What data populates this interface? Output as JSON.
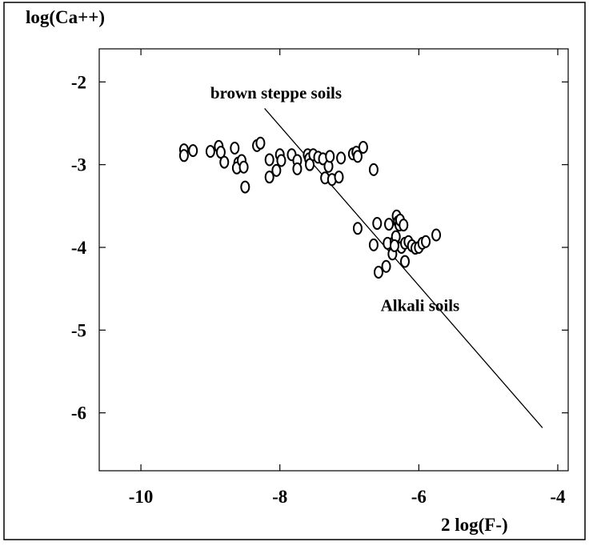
{
  "chart_data": {
    "type": "scatter",
    "ylabel": "log(Ca++)",
    "xlabel": "2 log(F-)",
    "xlim": [
      -10.6,
      -3.85
    ],
    "ylim": [
      -6.7,
      -1.6
    ],
    "xticks": [
      -10,
      -8,
      -6,
      -4
    ],
    "yticks": [
      -2,
      -3,
      -4,
      -5,
      -6
    ],
    "x_tick_labels": [
      "-10",
      "-8",
      "-6",
      "-4"
    ],
    "y_tick_labels": [
      "-2",
      "-3",
      "-4",
      "-5",
      "-6"
    ],
    "grid": false,
    "annotations": [
      {
        "text": "brown steppe soils",
        "x": -9.0,
        "y": -2.2
      },
      {
        "text": "Alkali soils",
        "x": -6.55,
        "y": -4.77
      }
    ],
    "line": {
      "x": [
        -8.22,
        -4.22
      ],
      "y": [
        -2.32,
        -6.18
      ]
    },
    "points": [
      {
        "x": -9.38,
        "y": -2.82
      },
      {
        "x": -9.38,
        "y": -2.89
      },
      {
        "x": -9.25,
        "y": -2.83
      },
      {
        "x": -9.0,
        "y": -2.84
      },
      {
        "x": -8.88,
        "y": -2.78
      },
      {
        "x": -8.85,
        "y": -2.85
      },
      {
        "x": -8.8,
        "y": -2.97
      },
      {
        "x": -8.65,
        "y": -2.8
      },
      {
        "x": -8.6,
        "y": -2.98
      },
      {
        "x": -8.62,
        "y": -3.04
      },
      {
        "x": -8.55,
        "y": -2.95
      },
      {
        "x": -8.52,
        "y": -3.03
      },
      {
        "x": -8.5,
        "y": -3.27
      },
      {
        "x": -8.33,
        "y": -2.77
      },
      {
        "x": -8.28,
        "y": -2.74
      },
      {
        "x": -8.15,
        "y": -2.94
      },
      {
        "x": -8.15,
        "y": -3.15
      },
      {
        "x": -8.05,
        "y": -3.07
      },
      {
        "x": -8.0,
        "y": -2.88
      },
      {
        "x": -7.98,
        "y": -2.95
      },
      {
        "x": -7.83,
        "y": -2.88
      },
      {
        "x": -7.75,
        "y": -2.95
      },
      {
        "x": -7.75,
        "y": -3.05
      },
      {
        "x": -7.6,
        "y": -2.88
      },
      {
        "x": -7.58,
        "y": -2.93
      },
      {
        "x": -7.57,
        "y": -3.0
      },
      {
        "x": -7.52,
        "y": -2.88
      },
      {
        "x": -7.45,
        "y": -2.91
      },
      {
        "x": -7.38,
        "y": -2.93
      },
      {
        "x": -7.35,
        "y": -3.16
      },
      {
        "x": -7.3,
        "y": -3.02
      },
      {
        "x": -7.28,
        "y": -2.9
      },
      {
        "x": -7.25,
        "y": -3.18
      },
      {
        "x": -7.15,
        "y": -3.15
      },
      {
        "x": -7.12,
        "y": -2.92
      },
      {
        "x": -6.95,
        "y": -2.87
      },
      {
        "x": -6.9,
        "y": -2.85
      },
      {
        "x": -6.88,
        "y": -2.9
      },
      {
        "x": -6.8,
        "y": -2.79
      },
      {
        "x": -6.65,
        "y": -3.06
      },
      {
        "x": -6.88,
        "y": -3.77
      },
      {
        "x": -6.65,
        "y": -3.97
      },
      {
        "x": -6.6,
        "y": -3.71
      },
      {
        "x": -6.58,
        "y": -4.3
      },
      {
        "x": -6.47,
        "y": -4.23
      },
      {
        "x": -6.45,
        "y": -3.95
      },
      {
        "x": -6.43,
        "y": -3.72
      },
      {
        "x": -6.38,
        "y": -4.08
      },
      {
        "x": -6.35,
        "y": -3.93
      },
      {
        "x": -6.33,
        "y": -3.87
      },
      {
        "x": -6.32,
        "y": -3.62
      },
      {
        "x": -6.3,
        "y": -3.69
      },
      {
        "x": -6.28,
        "y": -3.73
      },
      {
        "x": -6.27,
        "y": -3.67
      },
      {
        "x": -6.25,
        "y": -4.0
      },
      {
        "x": -6.22,
        "y": -3.73
      },
      {
        "x": -6.2,
        "y": -3.95
      },
      {
        "x": -6.2,
        "y": -4.17
      },
      {
        "x": -6.15,
        "y": -3.93
      },
      {
        "x": -6.1,
        "y": -3.98
      },
      {
        "x": -6.05,
        "y": -4.01
      },
      {
        "x": -6.0,
        "y": -4.0
      },
      {
        "x": -5.95,
        "y": -3.95
      },
      {
        "x": -5.9,
        "y": -3.93
      },
      {
        "x": -5.75,
        "y": -3.85
      },
      {
        "x": -6.35,
        "y": -3.98
      }
    ]
  }
}
